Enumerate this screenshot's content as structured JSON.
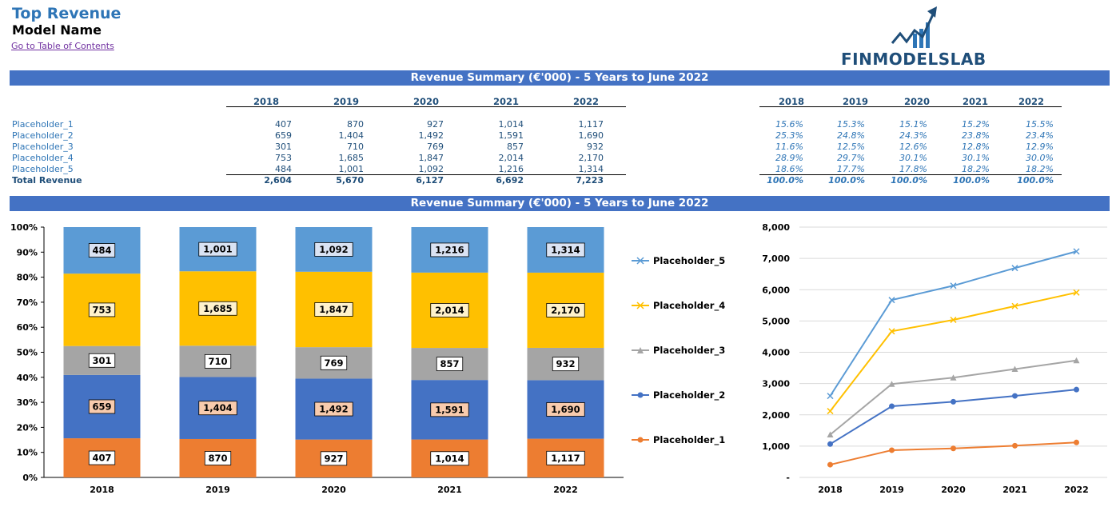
{
  "header": {
    "title": "Top Revenue",
    "model_name": "Model Name",
    "toc_link": "Go to Table of Contents",
    "logo_text": "FINMODELSLAB"
  },
  "banners": {
    "summary_table": "Revenue Summary (€'000) - 5 Years to June 2022",
    "summary_charts": "Revenue Summary (€'000) - 5 Years to June 2022"
  },
  "table": {
    "years": [
      "2018",
      "2019",
      "2020",
      "2021",
      "2022"
    ],
    "rows": [
      {
        "label": "Placeholder_1",
        "values": [
          "407",
          "870",
          "927",
          "1,014",
          "1,117"
        ],
        "pct": [
          "15.6%",
          "15.3%",
          "15.1%",
          "15.2%",
          "15.5%"
        ]
      },
      {
        "label": "Placeholder_2",
        "values": [
          "659",
          "1,404",
          "1,492",
          "1,591",
          "1,690"
        ],
        "pct": [
          "25.3%",
          "24.8%",
          "24.3%",
          "23.8%",
          "23.4%"
        ]
      },
      {
        "label": "Placeholder_3",
        "values": [
          "301",
          "710",
          "769",
          "857",
          "932"
        ],
        "pct": [
          "11.6%",
          "12.5%",
          "12.6%",
          "12.8%",
          "12.9%"
        ]
      },
      {
        "label": "Placeholder_4",
        "values": [
          "753",
          "1,685",
          "1,847",
          "2,014",
          "2,170"
        ],
        "pct": [
          "28.9%",
          "29.7%",
          "30.1%",
          "30.1%",
          "30.0%"
        ]
      },
      {
        "label": "Placeholder_5",
        "values": [
          "484",
          "1,001",
          "1,092",
          "1,216",
          "1,314"
        ],
        "pct": [
          "18.6%",
          "17.7%",
          "17.8%",
          "18.2%",
          "18.2%"
        ]
      }
    ],
    "total": {
      "label": "Total Revenue",
      "values": [
        "2,604",
        "5,670",
        "6,127",
        "6,692",
        "7,223"
      ],
      "pct": [
        "100.0%",
        "100.0%",
        "100.0%",
        "100.0%",
        "100.0%"
      ]
    }
  },
  "colors": {
    "placeholder_1": "#ed7d31",
    "placeholder_2": "#4472c4",
    "placeholder_3": "#a5a5a5",
    "placeholder_4": "#ffc000",
    "placeholder_5": "#5b9bd5",
    "banner": "#4472c4"
  },
  "chart_data": [
    {
      "type": "bar",
      "stacked": "100%",
      "categories": [
        "2018",
        "2019",
        "2020",
        "2021",
        "2022"
      ],
      "y_ticks": [
        "0%",
        "10%",
        "20%",
        "30%",
        "40%",
        "50%",
        "60%",
        "70%",
        "80%",
        "90%",
        "100%"
      ],
      "ylim": [
        0,
        100
      ],
      "legend_position": "right",
      "series": [
        {
          "name": "Placeholder_1",
          "values": [
            407,
            870,
            927,
            1014,
            1117
          ],
          "labels": [
            "407",
            "870",
            "927",
            "1,014",
            "1,117"
          ]
        },
        {
          "name": "Placeholder_2",
          "values": [
            659,
            1404,
            1492,
            1591,
            1690
          ],
          "labels": [
            "659",
            "1,404",
            "1,492",
            "1,591",
            "1,690"
          ]
        },
        {
          "name": "Placeholder_3",
          "values": [
            301,
            710,
            769,
            857,
            932
          ],
          "labels": [
            "301",
            "710",
            "769",
            "857",
            "932"
          ]
        },
        {
          "name": "Placeholder_4",
          "values": [
            753,
            1685,
            1847,
            2014,
            2170
          ],
          "labels": [
            "753",
            "1,685",
            "1,847",
            "2,014",
            "2,170"
          ]
        },
        {
          "name": "Placeholder_5",
          "values": [
            484,
            1001,
            1092,
            1216,
            1314
          ],
          "labels": [
            "484",
            "1,001",
            "1,092",
            "1,216",
            "1,314"
          ]
        }
      ]
    },
    {
      "type": "line",
      "cumulative": true,
      "categories": [
        "2018",
        "2019",
        "2020",
        "2021",
        "2022"
      ],
      "y_ticks": [
        "-",
        "1,000",
        "2,000",
        "3,000",
        "4,000",
        "5,000",
        "6,000",
        "7,000",
        "8,000"
      ],
      "ylim": [
        0,
        8000
      ],
      "grid": true,
      "series": [
        {
          "name": "Placeholder_1",
          "values": [
            407,
            870,
            927,
            1014,
            1117
          ]
        },
        {
          "name": "Placeholder_2",
          "values": [
            1066,
            2274,
            2419,
            2605,
            2807
          ]
        },
        {
          "name": "Placeholder_3",
          "values": [
            1367,
            2984,
            3188,
            3462,
            3739
          ]
        },
        {
          "name": "Placeholder_4",
          "values": [
            2120,
            4669,
            5035,
            5476,
            5909
          ]
        },
        {
          "name": "Placeholder_5",
          "values": [
            2604,
            5670,
            6127,
            6692,
            7223
          ]
        }
      ]
    }
  ]
}
